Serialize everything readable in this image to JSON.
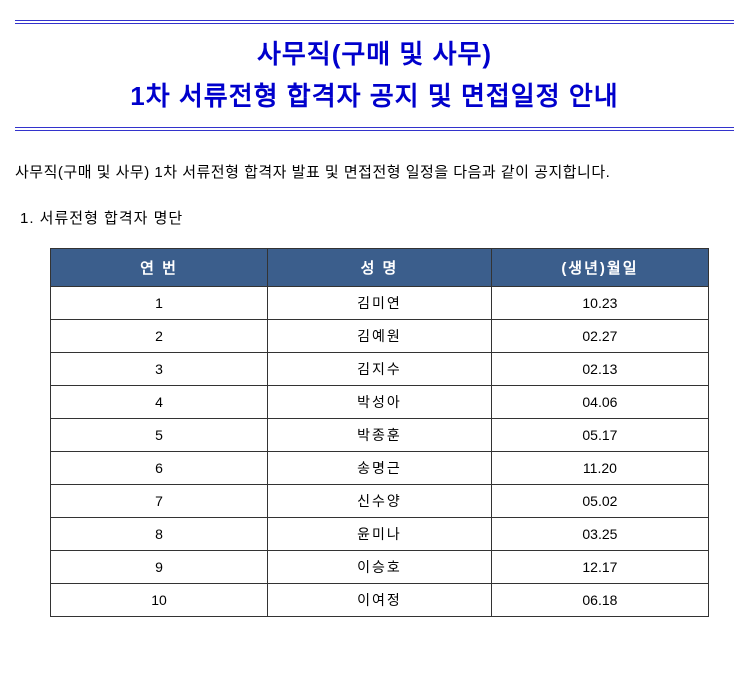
{
  "title": {
    "line1": "사무직(구매 및 사무)",
    "line2": "1차 서류전형 합격자 공지 및 면접일정 안내",
    "color": "#0000cc",
    "border_color": "#3333cc",
    "fontsize": 26
  },
  "intro": "사무직(구매 및 사무) 1차 서류전형 합격자 발표 및 면접전형 일정을 다음과 같이 공지합니다.",
  "section_heading": "1. 서류전형 합격자 명단",
  "table": {
    "type": "table",
    "header_bg": "#3b5e8c",
    "header_text_color": "#ffffff",
    "border_color": "#333333",
    "cell_bg": "#ffffff",
    "columns": [
      "연 번",
      "성 명",
      "(생년)월일"
    ],
    "col_widths": [
      "33%",
      "34%",
      "33%"
    ],
    "rows": [
      [
        "1",
        "김미연",
        "10.23"
      ],
      [
        "2",
        "김예원",
        "02.27"
      ],
      [
        "3",
        "김지수",
        "02.13"
      ],
      [
        "4",
        "박성아",
        "04.06"
      ],
      [
        "5",
        "박종훈",
        "05.17"
      ],
      [
        "6",
        "송명근",
        "11.20"
      ],
      [
        "7",
        "신수양",
        "05.02"
      ],
      [
        "8",
        "윤미나",
        "03.25"
      ],
      [
        "9",
        "이승호",
        "12.17"
      ],
      [
        "10",
        "이여정",
        "06.18"
      ]
    ]
  },
  "background_color": "#ffffff"
}
